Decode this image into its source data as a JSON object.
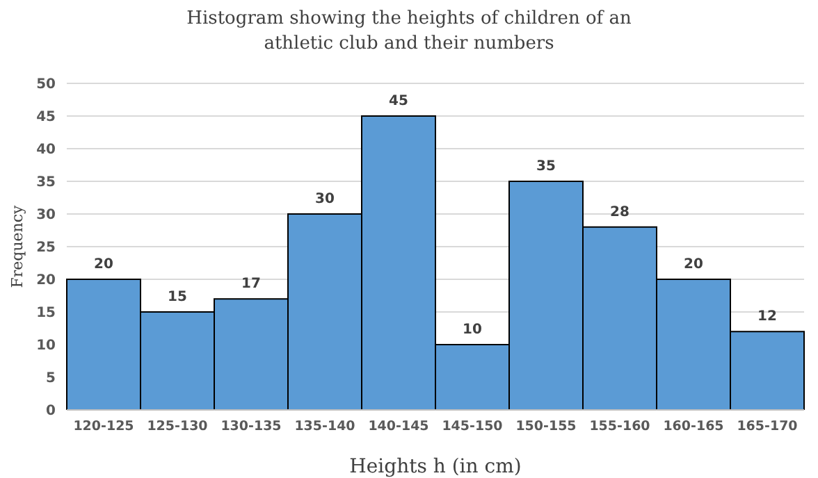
{
  "chart_data": {
    "type": "bar",
    "title": "Histogram showing the heights of children of an athletic club and their numbers",
    "xlabel": "Heights h (in cm)",
    "ylabel": "Frequency",
    "categories": [
      "120-125",
      "125-130",
      "130-135",
      "135-140",
      "140-145",
      "145-150",
      "150-155",
      "155-160",
      "160-165",
      "165-170"
    ],
    "values": [
      20,
      15,
      17,
      30,
      45,
      10,
      35,
      28,
      20,
      12
    ],
    "color": "#5b9bd5",
    "ylim": [
      0,
      50
    ],
    "yticks": [
      0,
      5,
      10,
      15,
      20,
      25,
      30,
      35,
      40,
      45,
      50
    ],
    "grid": "y",
    "data_labels": true
  }
}
